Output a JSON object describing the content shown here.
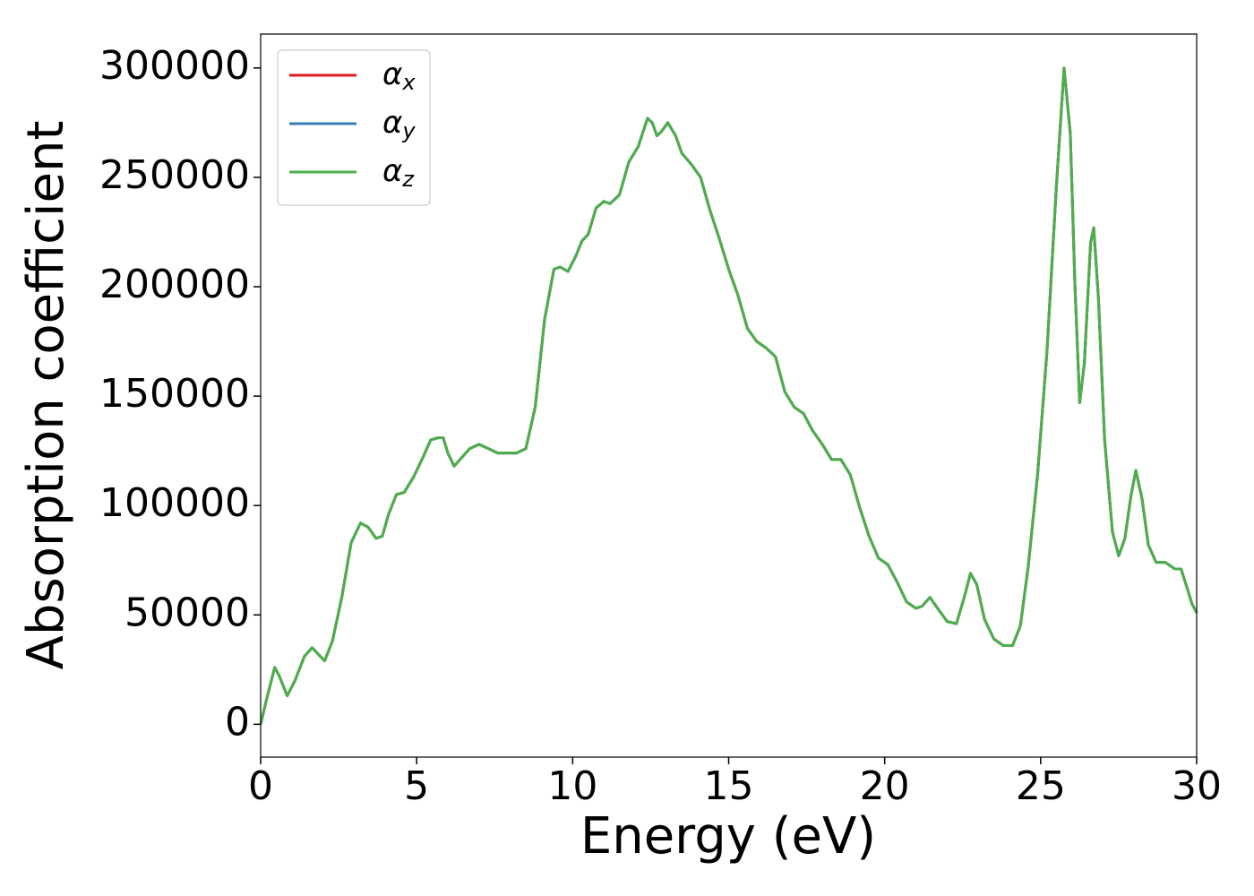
{
  "chart_data": {
    "type": "line",
    "xlabel": "Energy (eV)",
    "ylabel": "Absorption coefficient",
    "x": [
      0,
      0.2,
      0.45,
      0.6,
      0.85,
      1.1,
      1.4,
      1.65,
      1.85,
      2.05,
      2.3,
      2.6,
      2.9,
      3.2,
      3.45,
      3.7,
      3.9,
      4.1,
      4.35,
      4.6,
      4.9,
      5.2,
      5.45,
      5.7,
      5.85,
      6.0,
      6.2,
      6.45,
      6.7,
      7.0,
      7.3,
      7.6,
      7.9,
      8.2,
      8.5,
      8.8,
      9.1,
      9.4,
      9.6,
      9.85,
      10.1,
      10.3,
      10.5,
      10.75,
      11.0,
      11.2,
      11.5,
      11.8,
      12.1,
      12.4,
      12.55,
      12.7,
      12.85,
      13.05,
      13.3,
      13.5,
      13.8,
      14.1,
      14.4,
      14.7,
      15.0,
      15.3,
      15.6,
      15.9,
      16.2,
      16.5,
      16.8,
      17.1,
      17.4,
      17.7,
      18.0,
      18.3,
      18.6,
      18.9,
      19.2,
      19.5,
      19.8,
      20.1,
      20.4,
      20.7,
      21.0,
      21.2,
      21.45,
      21.7,
      22.0,
      22.3,
      22.55,
      22.75,
      22.95,
      23.2,
      23.5,
      23.8,
      24.1,
      24.35,
      24.6,
      24.9,
      25.2,
      25.5,
      25.75,
      25.95,
      26.1,
      26.25,
      26.4,
      26.6,
      26.7,
      26.85,
      27.05,
      27.3,
      27.5,
      27.7,
      27.9,
      28.05,
      28.25,
      28.45,
      28.7,
      29.0,
      29.3,
      29.5,
      29.7,
      29.85,
      30.0
    ],
    "series": [
      {
        "name": "αx",
        "color": "#e41a1c",
        "values": [
          0,
          12000,
          26000,
          22000,
          13000,
          20000,
          31000,
          35000,
          32000,
          29000,
          38000,
          58000,
          83000,
          92000,
          90000,
          85000,
          86000,
          96000,
          105000,
          106000,
          113000,
          122000,
          130000,
          131000,
          131000,
          124000,
          118000,
          122000,
          126000,
          128000,
          126000,
          124000,
          124000,
          124000,
          126000,
          145000,
          185000,
          208000,
          209000,
          207000,
          214000,
          221000,
          224000,
          236000,
          239000,
          238000,
          242000,
          257000,
          264000,
          277000,
          275000,
          269000,
          271000,
          275000,
          269000,
          261000,
          256000,
          250000,
          235000,
          222000,
          208000,
          196000,
          181000,
          175000,
          172000,
          168000,
          152000,
          145000,
          142000,
          134000,
          128000,
          121000,
          121000,
          114000,
          99000,
          86000,
          76000,
          73000,
          65000,
          56000,
          53000,
          54000,
          58000,
          53000,
          47000,
          46000,
          58000,
          69000,
          64000,
          48000,
          39000,
          36000,
          36000,
          45000,
          72000,
          114000,
          170000,
          245000,
          300000,
          270000,
          200000,
          147000,
          165000,
          220000,
          227000,
          195000,
          130000,
          88000,
          77000,
          85000,
          105000,
          116000,
          103000,
          82000,
          74000,
          74000,
          71000,
          71000,
          62000,
          55000,
          51000
        ]
      },
      {
        "name": "αy",
        "color": "#377eb8",
        "values": [
          0,
          12000,
          26000,
          22000,
          13000,
          20000,
          31000,
          35000,
          32000,
          29000,
          38000,
          58000,
          83000,
          92000,
          90000,
          85000,
          86000,
          96000,
          105000,
          106000,
          113000,
          122000,
          130000,
          131000,
          131000,
          124000,
          118000,
          122000,
          126000,
          128000,
          126000,
          124000,
          124000,
          124000,
          126000,
          145000,
          185000,
          208000,
          209000,
          207000,
          214000,
          221000,
          224000,
          236000,
          239000,
          238000,
          242000,
          257000,
          264000,
          277000,
          275000,
          269000,
          271000,
          275000,
          269000,
          261000,
          256000,
          250000,
          235000,
          222000,
          208000,
          196000,
          181000,
          175000,
          172000,
          168000,
          152000,
          145000,
          142000,
          134000,
          128000,
          121000,
          121000,
          114000,
          99000,
          86000,
          76000,
          73000,
          65000,
          56000,
          53000,
          54000,
          58000,
          53000,
          47000,
          46000,
          58000,
          69000,
          64000,
          48000,
          39000,
          36000,
          36000,
          45000,
          72000,
          114000,
          170000,
          245000,
          300000,
          270000,
          200000,
          147000,
          165000,
          220000,
          227000,
          195000,
          130000,
          88000,
          77000,
          85000,
          105000,
          116000,
          103000,
          82000,
          74000,
          74000,
          71000,
          71000,
          62000,
          55000,
          51000
        ]
      },
      {
        "name": "αz",
        "color": "#4daf4a",
        "values": [
          0,
          12000,
          26000,
          22000,
          13000,
          20000,
          31000,
          35000,
          32000,
          29000,
          38000,
          58000,
          83000,
          92000,
          90000,
          85000,
          86000,
          96000,
          105000,
          106000,
          113000,
          122000,
          130000,
          131000,
          131000,
          124000,
          118000,
          122000,
          126000,
          128000,
          126000,
          124000,
          124000,
          124000,
          126000,
          145000,
          185000,
          208000,
          209000,
          207000,
          214000,
          221000,
          224000,
          236000,
          239000,
          238000,
          242000,
          257000,
          264000,
          277000,
          275000,
          269000,
          271000,
          275000,
          269000,
          261000,
          256000,
          250000,
          235000,
          222000,
          208000,
          196000,
          181000,
          175000,
          172000,
          168000,
          152000,
          145000,
          142000,
          134000,
          128000,
          121000,
          121000,
          114000,
          99000,
          86000,
          76000,
          73000,
          65000,
          56000,
          53000,
          54000,
          58000,
          53000,
          47000,
          46000,
          58000,
          69000,
          64000,
          48000,
          39000,
          36000,
          36000,
          45000,
          72000,
          114000,
          170000,
          245000,
          300000,
          270000,
          200000,
          147000,
          165000,
          220000,
          227000,
          195000,
          130000,
          88000,
          77000,
          85000,
          105000,
          116000,
          103000,
          82000,
          74000,
          74000,
          71000,
          71000,
          62000,
          55000,
          51000
        ]
      }
    ],
    "xlim": [
      0,
      30
    ],
    "xticks": [
      0,
      5,
      10,
      15,
      20,
      25,
      30
    ],
    "ylim": [
      -15000,
      315500
    ],
    "yticks": [
      0,
      50000,
      100000,
      150000,
      200000,
      250000,
      300000
    ],
    "grid": false,
    "legend": "upper left"
  }
}
